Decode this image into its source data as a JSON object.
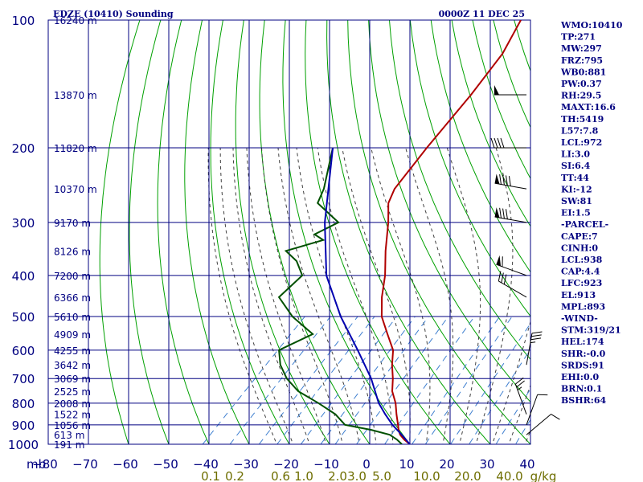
{
  "header": {
    "title": "EDZE (10410) Sounding",
    "time": "0000Z 11 DEC 25"
  },
  "axes": {
    "pressure_levels": [
      100,
      200,
      300,
      400,
      500,
      600,
      700,
      800,
      900,
      1000
    ],
    "pressure_axis_label": "mb",
    "temperature_ticks": [
      -80,
      -70,
      -60,
      -50,
      -40,
      -30,
      -20,
      -10,
      0,
      10,
      20,
      30,
      40
    ],
    "temperature_range": [
      -80,
      40
    ],
    "mixing_ratio_labels": [
      "0.1",
      "0.2",
      "0.6",
      "1.0",
      "2.0",
      "3.0",
      "5.0",
      "10.0",
      "20.0",
      "40.0"
    ],
    "mixing_ratio_unit": "g/kg"
  },
  "heights": [
    {
      "p": 100,
      "label": "16240 m"
    },
    {
      "p": 150,
      "label": "13870 m"
    },
    {
      "p": 200,
      "label": "11820 m"
    },
    {
      "p": 250,
      "label": "10370 m"
    },
    {
      "p": 300,
      "label": "9170 m"
    },
    {
      "p": 350,
      "label": "8126 m"
    },
    {
      "p": 400,
      "label": "7200 m"
    },
    {
      "p": 450,
      "label": "6366 m"
    },
    {
      "p": 500,
      "label": "5610 m"
    },
    {
      "p": 550,
      "label": "4909 m"
    },
    {
      "p": 600,
      "label": "4255 m"
    },
    {
      "p": 650,
      "label": "3642 m"
    },
    {
      "p": 700,
      "label": "3069 m"
    },
    {
      "p": 750,
      "label": "2525 m"
    },
    {
      "p": 800,
      "label": "2008 m"
    },
    {
      "p": 850,
      "label": "1522 m"
    },
    {
      "p": 900,
      "label": "1056 m"
    },
    {
      "p": 950,
      "label": "613 m"
    },
    {
      "p": 1000,
      "label": "191 m"
    }
  ],
  "indices": [
    "WMO:10410",
    "TP:271",
    "MW:297",
    "FRZ:795",
    "WB0:881",
    "PW:0.37",
    "RH:29.5",
    "MAXT:16.6",
    "TH:5419",
    "L57:7.8",
    "LCL:972",
    "LI:3.0",
    "SI:6.4",
    "TT:44",
    "KI:-12",
    "SW:81",
    "EI:1.5",
    "-PARCEL-",
    "CAPE:7",
    "CINH:0",
    "LCL:938",
    "CAP:4.4",
    "LFC:923",
    "EL:913",
    "MPL:893",
    "-WIND-",
    "STM:319/21",
    "HEL:174",
    "SHR:-0.0",
    "SRDS:91",
    "EHI:0.0",
    "BRN:0.1",
    "BSHR:64"
  ],
  "colors": {
    "background": "#ffffff",
    "grid": "#000080",
    "dry_adiabat": "#00a000",
    "moist_adiabat": "#404040",
    "mixing_ratio": "#4080d0",
    "temperature": "#b00000",
    "dewpoint": "#005000",
    "parcel": "#0000b0"
  },
  "chart_data": {
    "type": "line",
    "diagram": "skew-T log-p",
    "x_label": "",
    "y_label": "mb",
    "xlim": [
      -80,
      40
    ],
    "ylim": [
      1000,
      100
    ],
    "series": [
      {
        "key": "temperature",
        "points": [
          {
            "p": 1000,
            "t": 10
          },
          {
            "p": 975,
            "t": 7.4
          },
          {
            "p": 950,
            "t": 5.2
          },
          {
            "p": 925,
            "t": 3.6
          },
          {
            "p": 900,
            "t": 2.2
          },
          {
            "p": 850,
            "t": -0.8
          },
          {
            "p": 800,
            "t": -3.8
          },
          {
            "p": 750,
            "t": -7.6
          },
          {
            "p": 700,
            "t": -10.6
          },
          {
            "p": 650,
            "t": -14.2
          },
          {
            "p": 600,
            "t": -17.6
          },
          {
            "p": 550,
            "t": -23.0
          },
          {
            "p": 500,
            "t": -28.8
          },
          {
            "p": 450,
            "t": -33.6
          },
          {
            "p": 400,
            "t": -38.2
          },
          {
            "p": 350,
            "t": -44.2
          },
          {
            "p": 300,
            "t": -50.6
          },
          {
            "p": 270,
            "t": -55.4
          },
          {
            "p": 250,
            "t": -57.4
          },
          {
            "p": 200,
            "t": -59.6
          },
          {
            "p": 150,
            "t": -61.8
          },
          {
            "p": 120,
            "t": -64.2
          },
          {
            "p": 100,
            "t": -68.0
          }
        ]
      },
      {
        "key": "dewpoint",
        "points": [
          {
            "p": 1000,
            "t": 8.0
          },
          {
            "p": 975,
            "t": 5.6
          },
          {
            "p": 950,
            "t": 2.6
          },
          {
            "p": 925,
            "t": -3.2
          },
          {
            "p": 900,
            "t": -11.0
          },
          {
            "p": 850,
            "t": -16.0
          },
          {
            "p": 800,
            "t": -23.0
          },
          {
            "p": 750,
            "t": -31.0
          },
          {
            "p": 700,
            "t": -37.0
          },
          {
            "p": 650,
            "t": -42.0
          },
          {
            "p": 600,
            "t": -46.0
          },
          {
            "p": 550,
            "t": -41.6
          },
          {
            "p": 500,
            "t": -51.0
          },
          {
            "p": 450,
            "t": -59.2
          },
          {
            "p": 400,
            "t": -58.8
          },
          {
            "p": 370,
            "t": -63.8
          },
          {
            "p": 350,
            "t": -69.0
          },
          {
            "p": 330,
            "t": -62.4
          },
          {
            "p": 320,
            "t": -66.0
          },
          {
            "p": 300,
            "t": -63.0
          },
          {
            "p": 270,
            "t": -73.0
          },
          {
            "p": 250,
            "t": -75.0
          },
          {
            "p": 200,
            "t": -83.0
          }
        ]
      },
      {
        "key": "parcel",
        "points": [
          {
            "p": 1000,
            "t": 10.0
          },
          {
            "p": 950,
            "t": 5.6
          },
          {
            "p": 900,
            "t": 0.8
          },
          {
            "p": 850,
            "t": -3.6
          },
          {
            "p": 800,
            "t": -8.0
          },
          {
            "p": 700,
            "t": -16.0
          },
          {
            "p": 600,
            "t": -26.4
          },
          {
            "p": 500,
            "t": -39.0
          },
          {
            "p": 400,
            "t": -52.8
          },
          {
            "p": 300,
            "t": -66.4
          },
          {
            "p": 200,
            "t": -83.0
          }
        ]
      }
    ],
    "wind_barbs": [
      {
        "p": 150,
        "dir": 270,
        "kt": 50
      },
      {
        "p": 200,
        "dir": 270,
        "kt": 40
      },
      {
        "p": 250,
        "dir": 280,
        "kt": 90
      },
      {
        "p": 300,
        "dir": 280,
        "kt": 80
      },
      {
        "p": 400,
        "dir": 290,
        "kt": 60
      },
      {
        "p": 450,
        "dir": 300,
        "kt": 30
      },
      {
        "p": 650,
        "dir": 10,
        "kt": 35
      },
      {
        "p": 850,
        "dir": 340,
        "kt": 25
      },
      {
        "p": 900,
        "dir": 20,
        "kt": 10
      },
      {
        "p": 950,
        "dir": 50,
        "kt": 10
      }
    ]
  }
}
